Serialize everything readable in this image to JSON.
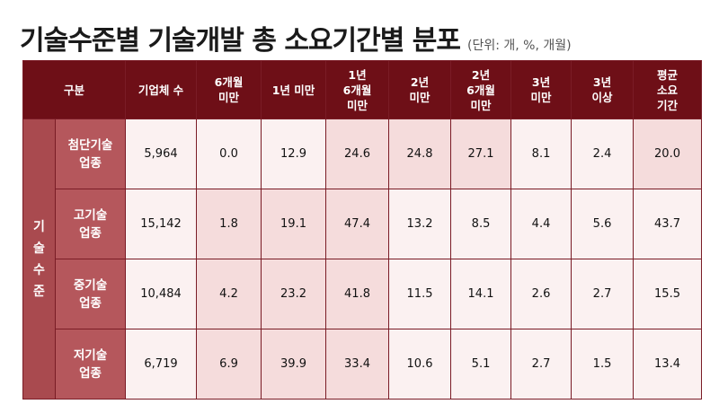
{
  "title": "기술수준별 기술개발 총 소요기간별 분포",
  "unit": "(단위: 개, %, 개월)",
  "headers": [
    "구분",
    "기업체 수",
    "6개월\n미만",
    "1년 미만",
    "1년\n6개월\n미만",
    "2년\n미만",
    "2년\n6개월\n미만",
    "3년\n미만",
    "3년\n이상",
    "평균\n소요\n기간"
  ],
  "group_label": "기술수준",
  "rows": [
    {
      "label": "첨단기술\n업종",
      "cells": [
        "5,964",
        "0.0",
        "12.9",
        "24.6",
        "24.8",
        "27.1",
        "8.1",
        "2.4",
        "20.0"
      ]
    },
    {
      "label": "고기술\n업종",
      "cells": [
        "15,142",
        "1.8",
        "19.1",
        "47.4",
        "13.2",
        "8.5",
        "4.4",
        "5.6",
        "43.7"
      ]
    },
    {
      "label": "중기술\n업종",
      "cells": [
        "10,484",
        "4.2",
        "23.2",
        "41.8",
        "11.5",
        "14.1",
        "2.6",
        "2.7",
        "15.5"
      ]
    },
    {
      "label": "저기술\n업종",
      "cells": [
        "6,719",
        "6.9",
        "39.9",
        "33.4",
        "10.6",
        "5.1",
        "2.7",
        "1.5",
        "13.4"
      ]
    }
  ]
}
